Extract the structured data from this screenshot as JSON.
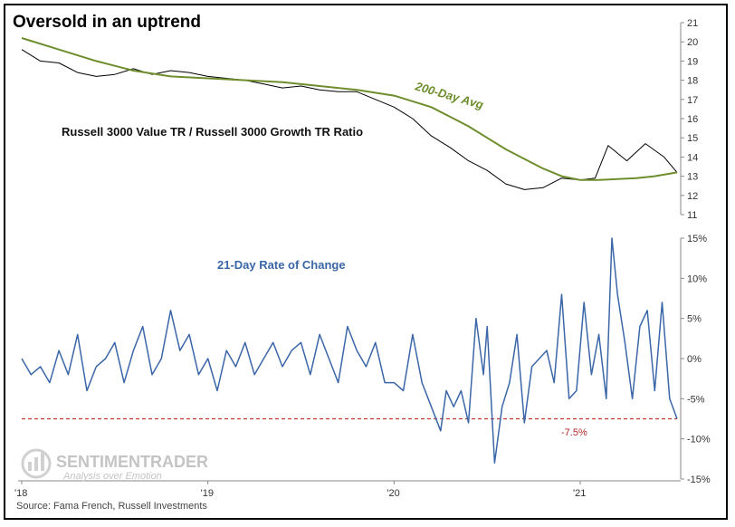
{
  "chart_data": [
    {
      "type": "line",
      "title": "Oversold in an uptrend",
      "series": [
        {
          "label": "Russell 3000 Value TR / Russell 3000 Growth TR Ratio",
          "color": "#000000",
          "x": [
            2018.0,
            2018.1,
            2018.2,
            2018.3,
            2018.4,
            2018.5,
            2018.6,
            2018.7,
            2018.8,
            2018.9,
            2019.0,
            2019.1,
            2019.2,
            2019.3,
            2019.4,
            2019.5,
            2019.6,
            2019.7,
            2019.8,
            2019.9,
            2020.0,
            2020.1,
            2020.2,
            2020.3,
            2020.4,
            2020.5,
            2020.6,
            2020.7,
            2020.8,
            2020.9,
            2021.0,
            2021.08,
            2021.15,
            2021.25,
            2021.35,
            2021.45,
            2021.52
          ],
          "y": [
            19.6,
            19.0,
            18.9,
            18.4,
            18.2,
            18.3,
            18.6,
            18.3,
            18.5,
            18.4,
            18.2,
            18.1,
            18.0,
            17.8,
            17.6,
            17.7,
            17.5,
            17.4,
            17.4,
            17.0,
            16.6,
            16.0,
            15.1,
            14.5,
            13.8,
            13.3,
            12.6,
            12.3,
            12.4,
            12.9,
            12.8,
            12.9,
            14.6,
            13.8,
            14.7,
            14.0,
            13.2
          ]
        },
        {
          "label": "200-Day Avg",
          "color": "#6e8e2d",
          "x": [
            2018.0,
            2018.2,
            2018.4,
            2018.6,
            2018.8,
            2019.0,
            2019.2,
            2019.4,
            2019.6,
            2019.8,
            2020.0,
            2020.1,
            2020.2,
            2020.3,
            2020.4,
            2020.5,
            2020.6,
            2020.7,
            2020.8,
            2020.9,
            2021.0,
            2021.1,
            2021.2,
            2021.3,
            2021.4,
            2021.52
          ],
          "y": [
            20.2,
            19.6,
            19.0,
            18.5,
            18.2,
            18.1,
            18.0,
            17.9,
            17.7,
            17.5,
            17.2,
            16.9,
            16.6,
            16.1,
            15.6,
            15.0,
            14.4,
            13.9,
            13.4,
            13.0,
            12.8,
            12.8,
            12.85,
            12.9,
            13.0,
            13.2
          ]
        }
      ],
      "y_axis": {
        "side": "right",
        "ylim": [
          11,
          21
        ],
        "ticks": [
          "11",
          "12",
          "13",
          "14",
          "15",
          "16",
          "17",
          "18",
          "19",
          "20",
          "21"
        ]
      },
      "annotation": "200-Day Avg"
    },
    {
      "type": "line",
      "series": [
        {
          "label": "21-Day Rate of Change",
          "color": "#3b66a7",
          "x": [
            2018.0,
            2018.05,
            2018.1,
            2018.15,
            2018.2,
            2018.25,
            2018.3,
            2018.35,
            2018.4,
            2018.45,
            2018.5,
            2018.55,
            2018.6,
            2018.65,
            2018.7,
            2018.75,
            2018.8,
            2018.85,
            2018.9,
            2018.95,
            2019.0,
            2019.05,
            2019.1,
            2019.15,
            2019.2,
            2019.25,
            2019.3,
            2019.35,
            2019.4,
            2019.45,
            2019.5,
            2019.55,
            2019.6,
            2019.65,
            2019.7,
            2019.75,
            2019.8,
            2019.85,
            2019.9,
            2019.95,
            2020.0,
            2020.05,
            2020.1,
            2020.15,
            2020.2,
            2020.25,
            2020.28,
            2020.32,
            2020.36,
            2020.4,
            2020.44,
            2020.48,
            2020.5,
            2020.54,
            2020.58,
            2020.62,
            2020.66,
            2020.7,
            2020.74,
            2020.78,
            2020.82,
            2020.86,
            2020.9,
            2020.94,
            2020.98,
            2021.02,
            2021.06,
            2021.1,
            2021.14,
            2021.17,
            2021.2,
            2021.24,
            2021.28,
            2021.32,
            2021.36,
            2021.4,
            2021.44,
            2021.48,
            2021.52
          ],
          "y": [
            0,
            -2,
            -1,
            -3,
            1,
            -2,
            3,
            -4,
            -1,
            0,
            2,
            -3,
            1,
            4,
            -2,
            0,
            6,
            1,
            3,
            -2,
            0,
            -4,
            1,
            -1,
            2,
            -2,
            0,
            2,
            -1,
            1,
            2,
            -2,
            3,
            0,
            -3,
            4,
            1,
            -1,
            2,
            -3,
            -3,
            -4,
            3,
            -3,
            -6,
            -9,
            -4,
            -6,
            -4,
            -8,
            5,
            -2,
            4,
            -13,
            -6,
            -3,
            3,
            -8,
            -1,
            0,
            1,
            -3,
            8,
            -5,
            -4,
            7,
            -2,
            3,
            -5,
            15,
            8,
            2,
            -5,
            4,
            6,
            -4,
            7,
            -5,
            -7.5
          ]
        }
      ],
      "threshold": {
        "value": -7.5,
        "label": "-7.5%"
      },
      "y_axis": {
        "side": "right",
        "ylim": [
          -15,
          15
        ],
        "ticks": [
          "-15%",
          "-10%",
          "-5%",
          "0%",
          "5%",
          "10%",
          "15%"
        ]
      }
    }
  ],
  "x_axis": {
    "ticks": [
      "'18",
      "'19",
      "'20",
      "'21"
    ],
    "tick_values": [
      2018,
      2019,
      2020,
      2021
    ],
    "xlim": [
      2018,
      2021.52
    ]
  },
  "source": "Source: Fama French, Russell Investments",
  "logo": {
    "main": "SENTIMENTRADER",
    "sub": "Analysis over Emotion"
  },
  "colors": {
    "ratio": "#000000",
    "avg": "#6e8e2d",
    "roc": "#3b66a7",
    "threshold": "#c0392b"
  }
}
